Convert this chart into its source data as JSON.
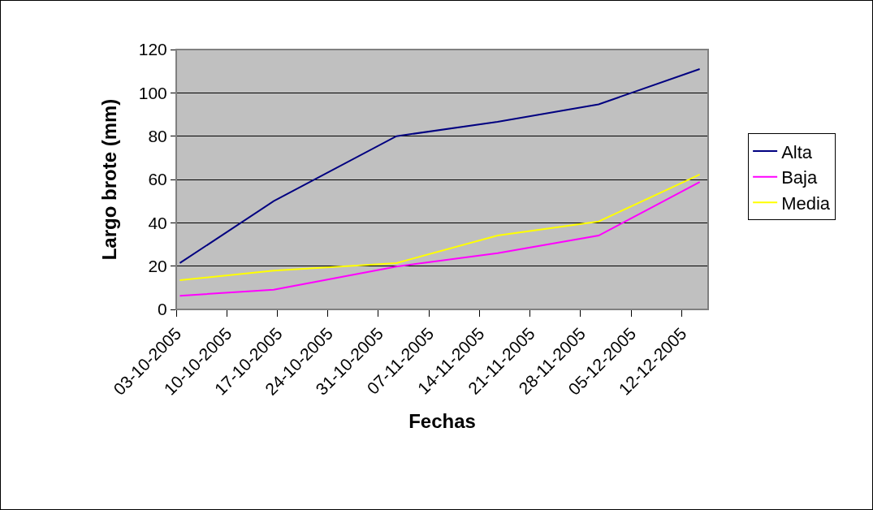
{
  "chart_data": {
    "type": "line",
    "xlabel": "Fechas",
    "ylabel": "Largo brote (mm)",
    "x": [
      "2005-10-03T12:00",
      "2005-10-16T12:00",
      "2005-11-02T12:00",
      "2005-11-16T12:00",
      "2005-11-30T12:00",
      "2005-12-14T12:00"
    ],
    "series": [
      {
        "name": "Alta",
        "color": "#000080",
        "values": [
          21.4,
          50,
          80,
          86.6,
          94.7,
          111
        ]
      },
      {
        "name": "Baja",
        "color": "#ff00ff",
        "values": [
          6.3,
          9.1,
          19.8,
          26,
          34.1,
          58.8
        ]
      },
      {
        "name": "Media",
        "color": "#ffff00",
        "values": [
          13.5,
          17.9,
          21.4,
          34.1,
          40.6,
          62.3
        ]
      }
    ],
    "xlim": [
      "2005-10-03",
      "2005-12-15T16:00"
    ],
    "xticks": [
      {
        "value": "2005-10-03",
        "label": "03-10-2005"
      },
      {
        "value": "2005-10-10",
        "label": "10-10-2005"
      },
      {
        "value": "2005-10-17",
        "label": "17-10-2005"
      },
      {
        "value": "2005-10-24",
        "label": "24-10-2005"
      },
      {
        "value": "2005-10-31",
        "label": "31-10-2005"
      },
      {
        "value": "2005-11-07",
        "label": "07-11-2005"
      },
      {
        "value": "2005-11-14",
        "label": "14-11-2005"
      },
      {
        "value": "2005-11-21",
        "label": "21-11-2005"
      },
      {
        "value": "2005-11-28",
        "label": "28-11-2005"
      },
      {
        "value": "2005-12-05",
        "label": "05-12-2005"
      },
      {
        "value": "2005-12-12",
        "label": "12-12-2005"
      }
    ],
    "ylim": [
      0,
      120
    ],
    "yticks": [
      0,
      20,
      40,
      60,
      80,
      100,
      120
    ],
    "grid": "y",
    "legend": "right",
    "marker": "none",
    "line_style": "solid"
  }
}
